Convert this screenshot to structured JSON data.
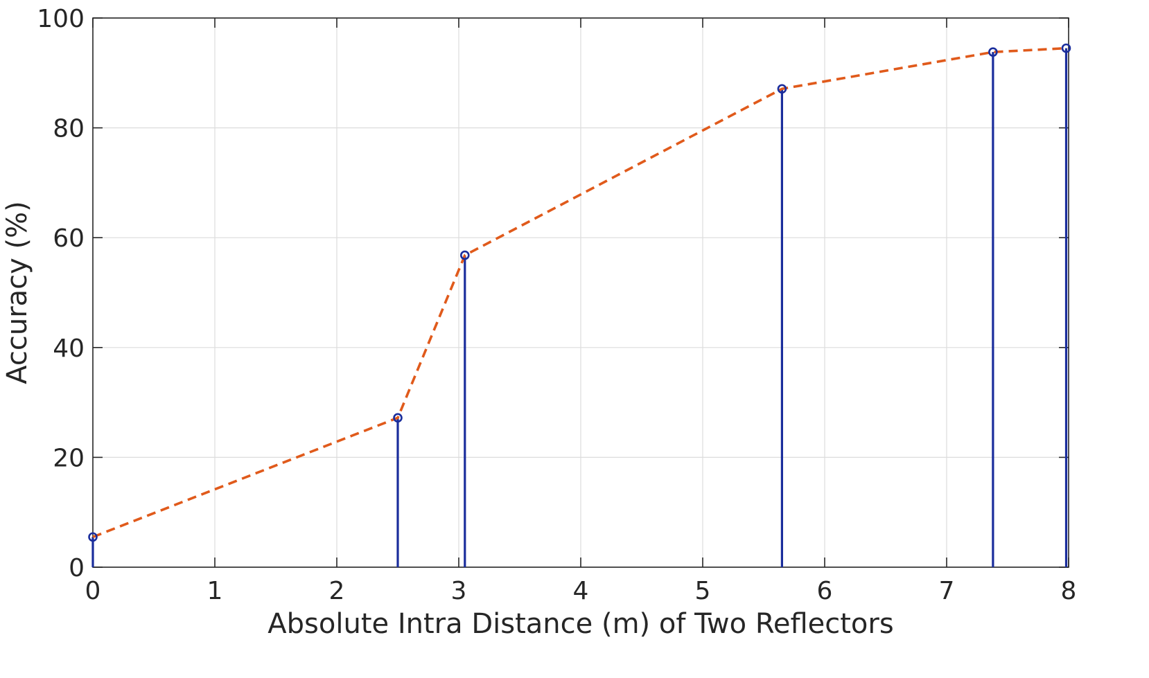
{
  "chart_data": {
    "type": "line",
    "xlabel": "Absolute Intra Distance (m) of Two Reflectors",
    "ylabel": "Accuracy (%)",
    "xlim": [
      0,
      8
    ],
    "ylim": [
      0,
      100
    ],
    "xticks": [
      "0",
      "1",
      "2",
      "3",
      "4",
      "5",
      "6",
      "7",
      "8"
    ],
    "yticks": [
      "0",
      "20",
      "40",
      "60",
      "80",
      "100"
    ],
    "grid": true,
    "legend": "none",
    "series": [
      {
        "style": "stem",
        "marker": "open-circle",
        "color": "#1a2d9c",
        "x": [
          0,
          2.5,
          3.05,
          5.65,
          7.38,
          7.98
        ],
        "y": [
          5.5,
          27.2,
          56.8,
          87.1,
          93.8,
          94.5
        ]
      },
      {
        "style": "dashed-line",
        "color": "#e05a1b",
        "x": [
          0,
          2.5,
          3.05,
          5.65,
          7.38,
          7.98
        ],
        "y": [
          5.5,
          27.2,
          56.8,
          87.1,
          93.8,
          94.5
        ]
      }
    ]
  }
}
